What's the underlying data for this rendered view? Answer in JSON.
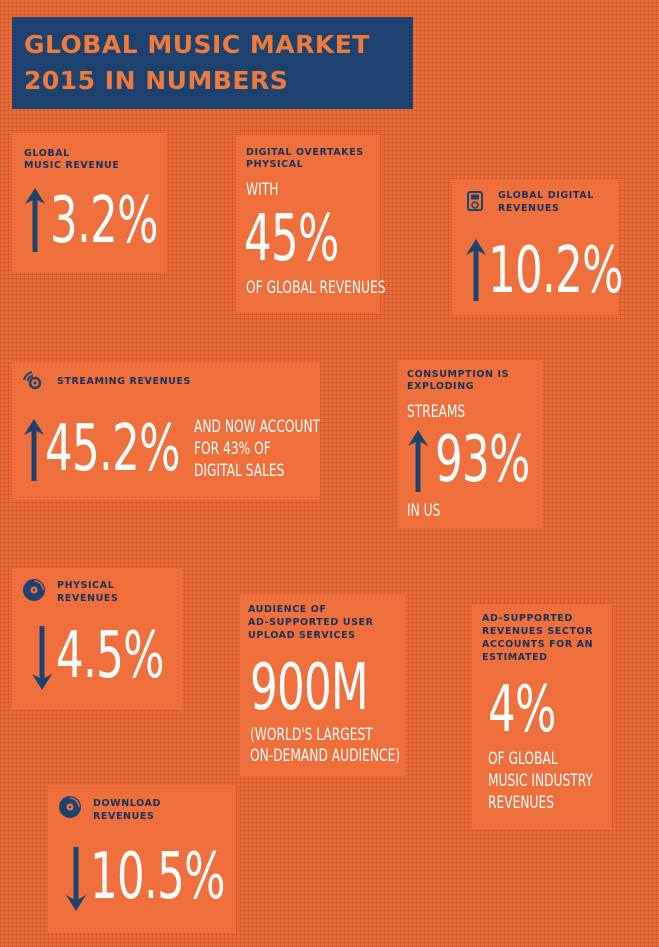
{
  "title": {
    "line1": "GLOBAL MUSIC MARKET",
    "line2": "2015 IN NUMBERS"
  },
  "colors": {
    "navy": "#1e4270",
    "orange": "#ea6c3b",
    "white": "#ffffff"
  },
  "stats": {
    "global_revenue": {
      "label1": "GLOBAL",
      "label2": "MUSIC REVENUE",
      "direction": "up",
      "value": "3.2%"
    },
    "digital_overtakes": {
      "label1": "DIGITAL OVERTAKES",
      "label2": "PHYSICAL",
      "pre": "WITH",
      "value": "45%",
      "post": "OF GLOBAL REVENUES"
    },
    "global_digital": {
      "icon": "ipod-icon",
      "label1": "GLOBAL DIGITAL",
      "label2": "REVENUES",
      "direction": "up",
      "value": "10.2%"
    },
    "streaming": {
      "icon": "streaming-disc-icon",
      "label": "STREAMING REVENUES",
      "direction": "up",
      "value": "45.2%",
      "note1": "AND NOW ACCOUNT",
      "note2": "FOR 43% OF",
      "note3": "DIGITAL SALES"
    },
    "consumption": {
      "label1": "CONSUMPTION IS",
      "label2": "EXPLODING",
      "pre": "STREAMS",
      "direction": "up",
      "value": "93%",
      "post": "IN US"
    },
    "physical": {
      "icon": "cd-icon",
      "label1": "PHYSICAL",
      "label2": "REVENUES",
      "direction": "down",
      "value": "4.5%"
    },
    "audience": {
      "label1": "AUDIENCE OF",
      "label2": "AD-SUPPORTED USER",
      "label3": "UPLOAD SERVICES",
      "value": "900M",
      "post1": "(WORLD'S LARGEST",
      "post2": "ON-DEMAND AUDIENCE)"
    },
    "ad_supported": {
      "label1": "AD-SUPPORTED",
      "label2": "REVENUES SECTOR",
      "label3": "ACCOUNTS FOR AN",
      "label4": "ESTIMATED",
      "value": "4%",
      "post1": "OF GLOBAL",
      "post2": "MUSIC INDUSTRY",
      "post3": "REVENUES"
    },
    "download": {
      "icon": "download-disc-icon",
      "label1": "DOWNLOAD",
      "label2": "REVENUES",
      "direction": "down",
      "value": "10.5%"
    }
  }
}
